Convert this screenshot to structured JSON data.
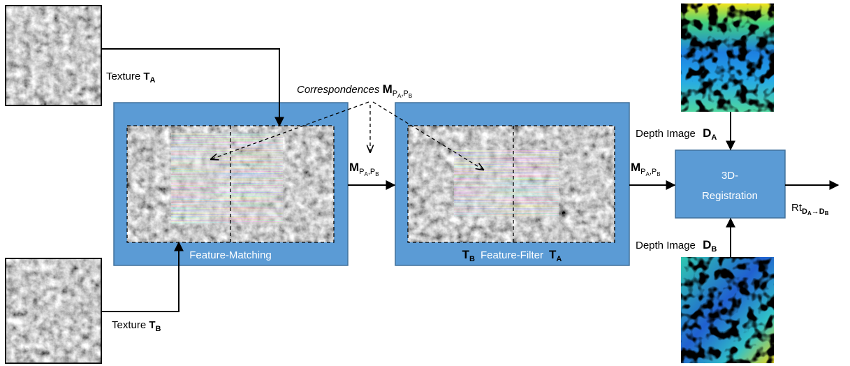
{
  "texture_a": {
    "label": "Texture",
    "symbol": "T",
    "sub": "A"
  },
  "texture_b": {
    "label": "Texture",
    "symbol": "T",
    "sub": "B"
  },
  "correspondences": {
    "label": "Correspondences",
    "symbol": "M",
    "sub1": {
      "base": "P",
      "sub": "A"
    },
    "sep": ",",
    "sub2": {
      "base": "P",
      "sub": "B"
    }
  },
  "matches_1": {
    "symbol": "M",
    "sub1": {
      "base": "P",
      "sub": "A"
    },
    "sep": ",",
    "sub2": {
      "base": "P",
      "sub": "B"
    }
  },
  "matches_2": {
    "symbol": "M",
    "sub1": {
      "base": "P",
      "sub": "A"
    },
    "sep": ",",
    "sub2": {
      "base": "P",
      "sub": "B"
    }
  },
  "feature_matching": {
    "label": "Feature-Matching"
  },
  "feature_filter": {
    "left": {
      "symbol": "T",
      "sub": "B"
    },
    "label": "Feature-Filter",
    "right": {
      "symbol": "T",
      "sub": "A"
    }
  },
  "depth_a": {
    "label": "Depth Image",
    "symbol": "D",
    "sub": "A"
  },
  "depth_b": {
    "label": "Depth Image",
    "symbol": "D",
    "sub": "B"
  },
  "registration": {
    "line1": "3D-",
    "line2": "Registration"
  },
  "output": {
    "symbol": "Rt",
    "from": {
      "base": "D",
      "sub": "A"
    },
    "arrow": "→",
    "to": {
      "base": "D",
      "sub": "B"
    }
  }
}
